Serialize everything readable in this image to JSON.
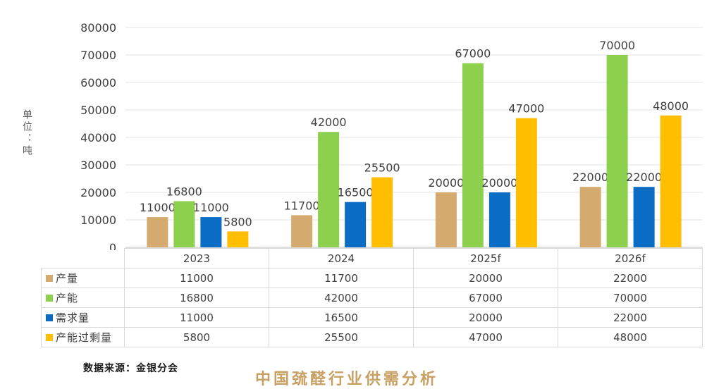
{
  "colors": {
    "产量": "#d4aa6e",
    "产能": "#8cd04e",
    "需求量": "#0a6cc4",
    "产能过剩量": "#ffbf00"
  },
  "unit_label": "单位：吨",
  "source": "数据来源：金银分会",
  "watermark": "中国巯醛行业供需分析",
  "chart_data": {
    "type": "bar",
    "categories": [
      "2023",
      "2024",
      "2025f",
      "2026f"
    ],
    "series": [
      {
        "name": "产量",
        "values": [
          11000,
          11700,
          20000,
          22000
        ]
      },
      {
        "name": "产能",
        "values": [
          16800,
          42000,
          67000,
          70000
        ]
      },
      {
        "name": "需求量",
        "values": [
          11000,
          16500,
          20000,
          22000
        ]
      },
      {
        "name": "产能过剩量",
        "values": [
          5800,
          25500,
          47000,
          48000
        ]
      }
    ],
    "ylabel": "单位：吨",
    "ylim": [
      0,
      80000
    ],
    "yticks": [
      "0",
      "10000",
      "20000",
      "30000",
      "40000",
      "50000",
      "60000",
      "70000",
      "80000"
    ],
    "grid": true,
    "legend": "data-table"
  }
}
